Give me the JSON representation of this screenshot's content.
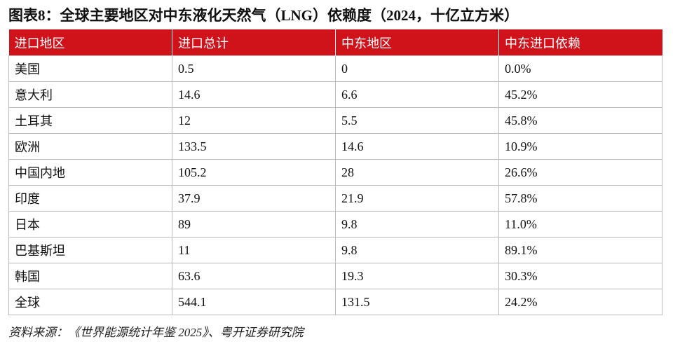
{
  "header": {
    "title": "图表8：全球主要地区对中东液化天然气（LNG）依赖度（2024，十亿立方米）"
  },
  "table": {
    "columns": [
      "进口地区",
      "进口总计",
      "中东地区",
      "中东进口依赖"
    ],
    "rows": [
      [
        "美国",
        "0.5",
        "0",
        "0.0%"
      ],
      [
        "意大利",
        "14.6",
        "6.6",
        "45.2%"
      ],
      [
        "土耳其",
        "12",
        "5.5",
        "45.8%"
      ],
      [
        "欧洲",
        "133.5",
        "14.6",
        "10.9%"
      ],
      [
        "中国内地",
        "105.2",
        "28",
        "26.6%"
      ],
      [
        "印度",
        "37.9",
        "21.9",
        "57.8%"
      ],
      [
        "日本",
        "89",
        "9.8",
        "11.0%"
      ],
      [
        "巴基斯坦",
        "11",
        "9.8",
        "89.1%"
      ],
      [
        "韩国",
        "63.6",
        "19.3",
        "30.3%"
      ],
      [
        "全球",
        "544.1",
        "131.5",
        "24.2%"
      ]
    ]
  },
  "footer": {
    "source": "资料来源：《世界能源统计年鉴 2025》、粤开证券研究院"
  }
}
